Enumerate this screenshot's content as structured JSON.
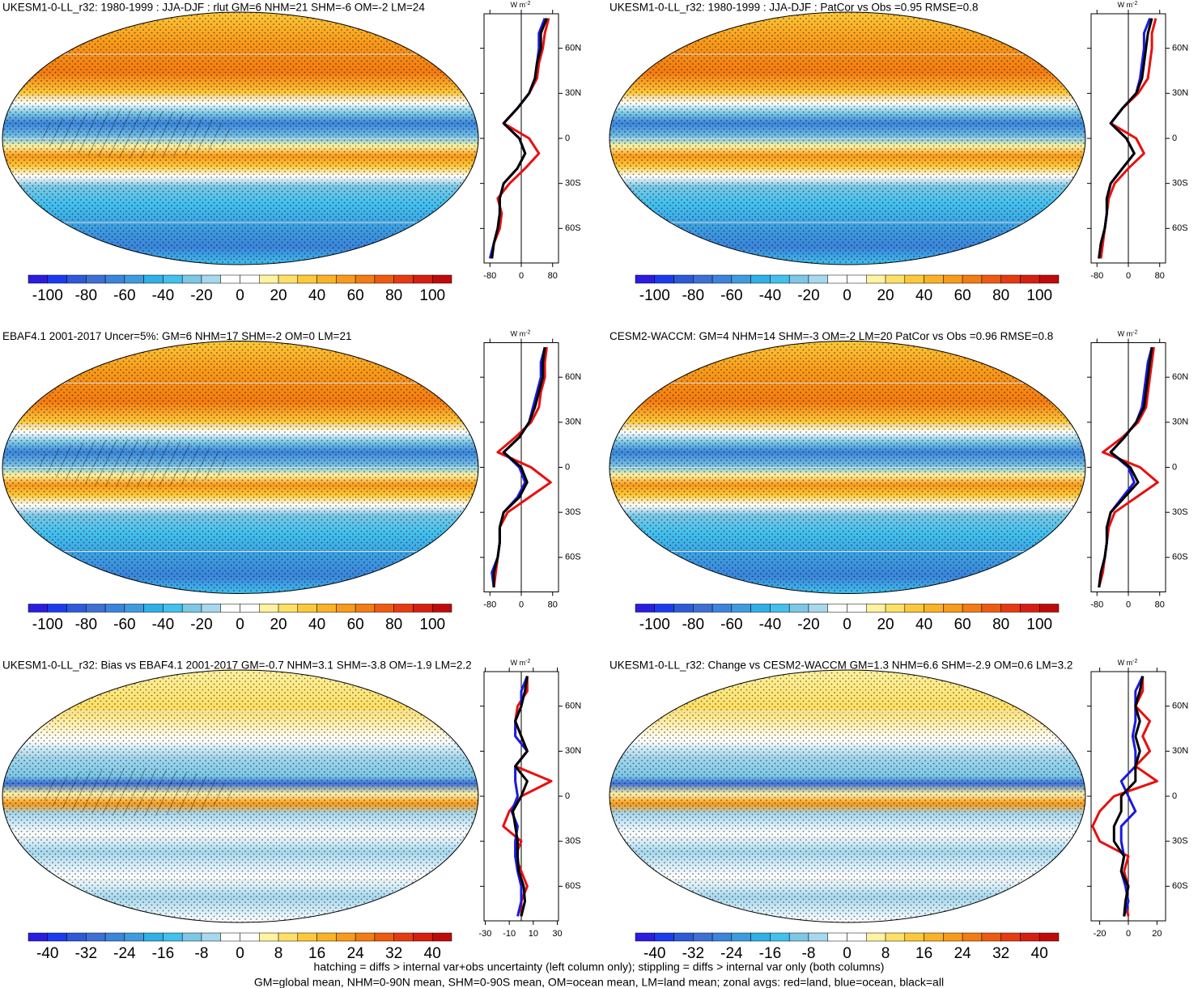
{
  "colorbar_colors": [
    "#2b1ce0",
    "#1a3bf0",
    "#2c5ad8",
    "#3c70d5",
    "#3b85dc",
    "#3d9ce0",
    "#2fb0e8",
    "#42c0ee",
    "#7cc8e6",
    "#a6d8ee",
    "#ffffff",
    "#ffffff",
    "#fff2a0",
    "#ffe066",
    "#fdc93a",
    "#fbb224",
    "#f89a1a",
    "#f47c12",
    "#ef5a10",
    "#e83a10",
    "#d81e10",
    "#c00a0a"
  ],
  "zonal_lat": [
    -80,
    -70,
    -60,
    -50,
    -40,
    -30,
    -20,
    -10,
    0,
    10,
    20,
    30,
    40,
    50,
    60,
    70,
    80
  ],
  "panels": [
    {
      "title": "UKESM1-0-LL_r32: 1980-1999 : JJA-DJF : rlut GM=6 NHM=21 SHM=-6 OM=-2 LM=24",
      "colorbar_ticks": [
        -100,
        -80,
        -60,
        -40,
        -20,
        0,
        20,
        40,
        60,
        80,
        100
      ],
      "zonal": {
        "type": "line",
        "unit": "W m",
        "unit_exponent": "-2",
        "xlim": [
          -95,
          95
        ],
        "xticks": [
          -80,
          0,
          80
        ],
        "ylim": [
          -83,
          83
        ],
        "yticks": [
          {
            "value": -60,
            "label": "60S"
          },
          {
            "value": -30,
            "label": "30S"
          },
          0,
          {
            "value": 30,
            "label": "30N"
          },
          {
            "value": 60,
            "label": "60N"
          }
        ],
        "series": [
          {
            "color": "#e8100f",
            "values": [
              -75,
              -70,
              -55,
              -50,
              -60,
              -30,
              10,
              45,
              20,
              -45,
              -10,
              20,
              40,
              45,
              55,
              60,
              70
            ]
          },
          {
            "color": "#1a1ae0",
            "values": [
              -80,
              -70,
              -60,
              -55,
              -55,
              -45,
              -10,
              10,
              -5,
              -45,
              -10,
              20,
              35,
              40,
              45,
              45,
              60
            ]
          },
          {
            "color": "#000000",
            "values": [
              -75,
              -70,
              -60,
              -55,
              -55,
              -45,
              -10,
              10,
              -5,
              -45,
              -10,
              20,
              35,
              40,
              50,
              50,
              65
            ]
          }
        ]
      }
    },
    {
      "title": "UKESM1-0-LL_r32: 1980-1999 : JJA-DJF : PatCor vs Obs =0.95 RMSE=0.8",
      "colorbar_ticks": [
        -100,
        -80,
        -60,
        -40,
        -20,
        0,
        20,
        40,
        60,
        80,
        100
      ],
      "zonal": {
        "type": "line",
        "unit": "W m",
        "unit_exponent": "-2",
        "xlim": [
          -95,
          95
        ],
        "xticks": [
          -80,
          0,
          80
        ],
        "ylim": [
          -83,
          83
        ],
        "yticks": [
          {
            "value": -60,
            "label": "60S"
          },
          {
            "value": -30,
            "label": "30S"
          },
          0,
          {
            "value": 30,
            "label": "30N"
          },
          {
            "value": 60,
            "label": "60N"
          }
        ],
        "series": [
          {
            "color": "#e8100f",
            "values": [
              -70,
              -65,
              -60,
              -55,
              -50,
              -35,
              0,
              40,
              20,
              -45,
              -15,
              25,
              50,
              55,
              60,
              60,
              70
            ]
          },
          {
            "color": "#1a1ae0",
            "values": [
              -75,
              -70,
              -60,
              -55,
              -55,
              -45,
              -15,
              15,
              -5,
              -45,
              -15,
              20,
              30,
              35,
              40,
              40,
              55
            ]
          },
          {
            "color": "#000000",
            "values": [
              -75,
              -70,
              -60,
              -55,
              -55,
              -45,
              -15,
              15,
              -5,
              -45,
              -15,
              20,
              35,
              40,
              45,
              50,
              60
            ]
          }
        ]
      }
    },
    {
      "title": "EBAF4.1 2001-2017 Uncer=5%: GM=6 NHM=17 SHM=-2 OM=0 LM=21",
      "colorbar_ticks": [
        -100,
        -80,
        -60,
        -40,
        -20,
        0,
        20,
        40,
        60,
        80,
        100
      ],
      "zonal": {
        "type": "line",
        "unit": "W m",
        "unit_exponent": "-2",
        "xlim": [
          -95,
          95
        ],
        "xticks": [
          -80,
          0,
          80
        ],
        "ylim": [
          -83,
          83
        ],
        "yticks": [
          {
            "value": -60,
            "label": "60S"
          },
          {
            "value": -30,
            "label": "30S"
          },
          0,
          {
            "value": 30,
            "label": "30N"
          },
          {
            "value": 60,
            "label": "60N"
          }
        ],
        "series": [
          {
            "color": "#e8100f",
            "values": [
              -70,
              -65,
              -60,
              -55,
              -55,
              -35,
              20,
              75,
              25,
              -60,
              -15,
              25,
              45,
              50,
              60,
              60,
              65
            ]
          },
          {
            "color": "#1a1ae0",
            "values": [
              -70,
              -75,
              -60,
              -55,
              -55,
              -45,
              -10,
              10,
              -5,
              -45,
              -5,
              20,
              30,
              40,
              50,
              50,
              60
            ]
          },
          {
            "color": "#000000",
            "values": [
              -70,
              -70,
              -60,
              -55,
              -55,
              -45,
              -5,
              15,
              0,
              -45,
              -5,
              20,
              35,
              45,
              55,
              55,
              60
            ]
          }
        ]
      }
    },
    {
      "title": "CESM2-WACCM: GM=4 NHM=14 SHM=-3 OM=-2 LM=20 PatCor vs Obs =0.96 RMSE=0.8",
      "colorbar_ticks": [
        -100,
        -80,
        -60,
        -40,
        -20,
        0,
        20,
        40,
        60,
        80,
        100
      ],
      "zonal": {
        "type": "line",
        "unit": "W m",
        "unit_exponent": "-2",
        "xlim": [
          -95,
          95
        ],
        "xticks": [
          -80,
          0,
          80
        ],
        "ylim": [
          -83,
          83
        ],
        "yticks": [
          {
            "value": -60,
            "label": "60S"
          },
          {
            "value": -30,
            "label": "30S"
          },
          0,
          {
            "value": 30,
            "label": "30N"
          },
          {
            "value": 60,
            "label": "60N"
          }
        ],
        "series": [
          {
            "color": "#e8100f",
            "values": [
              -75,
              -65,
              -60,
              -55,
              -50,
              -35,
              20,
              75,
              30,
              -65,
              -15,
              25,
              45,
              50,
              55,
              60,
              65
            ]
          },
          {
            "color": "#1a1ae0",
            "values": [
              -75,
              -70,
              -60,
              -55,
              -55,
              -45,
              -15,
              15,
              0,
              -45,
              -10,
              20,
              35,
              40,
              45,
              50,
              60
            ]
          },
          {
            "color": "#000000",
            "values": [
              -75,
              -70,
              -60,
              -55,
              -55,
              -45,
              -10,
              25,
              5,
              -45,
              -10,
              20,
              40,
              45,
              50,
              55,
              60
            ]
          }
        ]
      }
    },
    {
      "title": "UKESM1-0-LL_r32: Bias vs EBAF4.1 2001-2017 GM=-0.7 NHM=3.1 SHM=-3.8 OM=-1.9 LM=2.2",
      "colorbar_ticks": [
        -40,
        -32,
        -24,
        -16,
        -8,
        0,
        8,
        16,
        24,
        32,
        40
      ],
      "zonal": {
        "type": "line",
        "unit": "W m",
        "unit_exponent": "-2",
        "xlim": [
          -31,
          31
        ],
        "xticks": [
          -30,
          -10,
          10,
          30
        ],
        "ylim": [
          -83,
          83
        ],
        "yticks": [
          {
            "value": -60,
            "label": "60S"
          },
          {
            "value": -30,
            "label": "30S"
          },
          0,
          {
            "value": 30,
            "label": "30N"
          },
          {
            "value": 60,
            "label": "60N"
          }
        ],
        "series": [
          {
            "color": "#e8100f",
            "values": [
              0,
              0,
              5,
              0,
              -5,
              0,
              -15,
              -10,
              0,
              25,
              -5,
              5,
              0,
              -5,
              -3,
              5,
              5
            ]
          },
          {
            "color": "#1a1ae0",
            "values": [
              -3,
              0,
              0,
              -3,
              -5,
              -5,
              -3,
              -8,
              -3,
              -5,
              -5,
              5,
              -5,
              -5,
              0,
              0,
              5
            ]
          },
          {
            "color": "#000000",
            "values": [
              0,
              3,
              2,
              -2,
              -3,
              -3,
              -5,
              -7,
              0,
              5,
              -5,
              5,
              0,
              -5,
              0,
              3,
              5
            ]
          }
        ]
      }
    },
    {
      "title": "UKESM1-0-LL_r32: Change vs CESM2-WACCM GM=1.3 NHM=6.6 SHM=-2.9 OM=0.6 LM=3.2",
      "colorbar_ticks": [
        -40,
        -32,
        -24,
        -16,
        -8,
        0,
        8,
        16,
        24,
        32,
        40
      ],
      "zonal": {
        "type": "line",
        "unit": "W m",
        "unit_exponent": "-2",
        "xlim": [
          -26,
          26
        ],
        "xticks": [
          -20,
          0,
          20
        ],
        "ylim": [
          -83,
          83
        ],
        "yticks": [
          {
            "value": -60,
            "label": "60S"
          },
          {
            "value": -30,
            "label": "30S"
          },
          0,
          {
            "value": 30,
            "label": "30N"
          },
          {
            "value": 60,
            "label": "60N"
          }
        ],
        "series": [
          {
            "color": "#e8100f",
            "values": [
              0,
              -2,
              0,
              -3,
              0,
              -20,
              -25,
              -20,
              -10,
              20,
              5,
              15,
              10,
              15,
              5,
              10,
              10
            ]
          },
          {
            "color": "#1a1ae0",
            "values": [
              -3,
              0,
              -2,
              -5,
              -3,
              -5,
              -5,
              5,
              0,
              -5,
              5,
              5,
              3,
              5,
              5,
              5,
              10
            ]
          },
          {
            "color": "#000000",
            "values": [
              -3,
              -2,
              0,
              -5,
              -3,
              -10,
              -10,
              -5,
              -5,
              5,
              5,
              8,
              5,
              8,
              5,
              8,
              10
            ]
          }
        ]
      }
    }
  ],
  "footer": [
    "hatching = diffs > internal var+obs uncertainty (left column only); stippling = diffs > internal var only (both columns)",
    "GM=global mean, NHM=0-90N mean, SHM=0-90S mean, OM=ocean mean, LM=land mean; zonal avgs: red=land, blue=ocean, black=all"
  ]
}
